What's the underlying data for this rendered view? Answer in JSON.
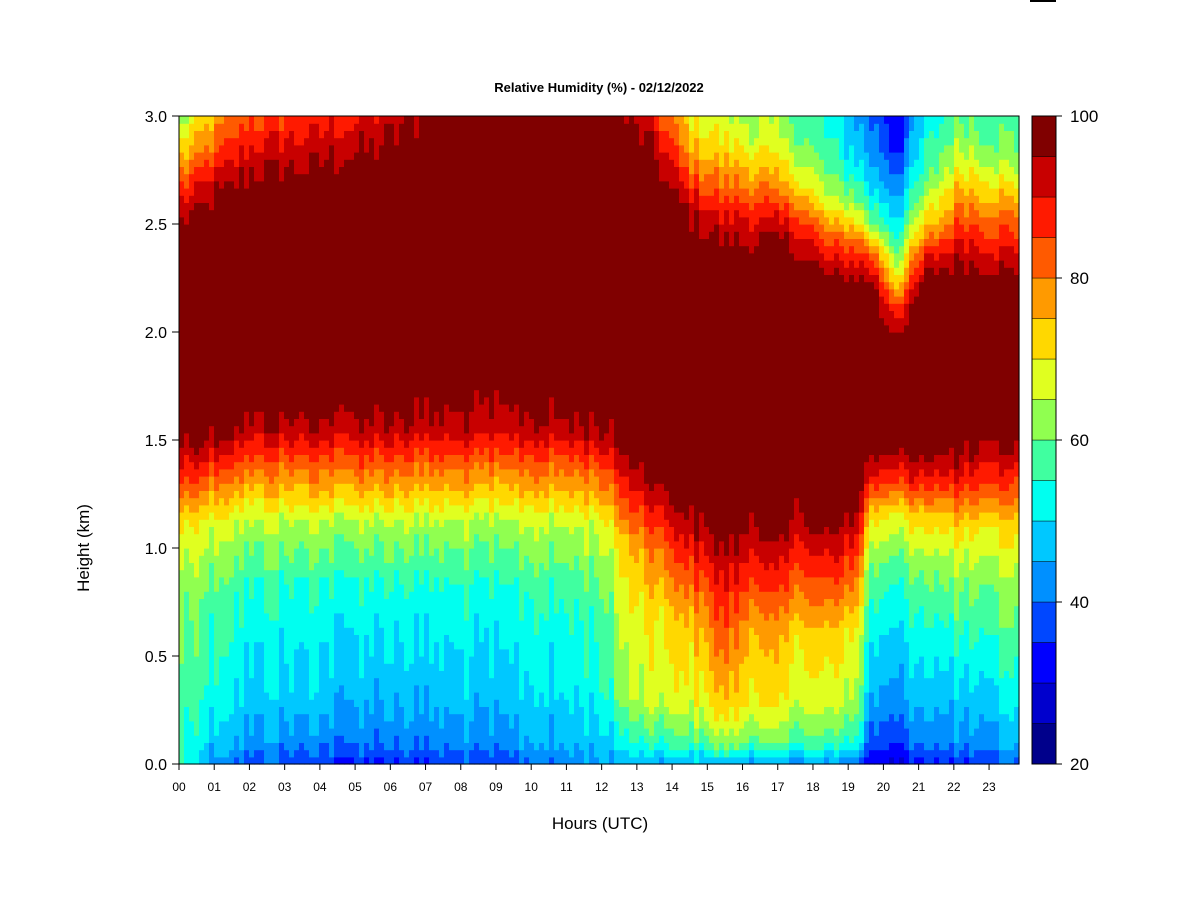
{
  "chart_data": {
    "type": "heatmap",
    "title": "Relative Humidity (%) - 02/12/2022",
    "xlabel": "Hours (UTC)",
    "ylabel": "Height (km)",
    "x_ticks": [
      "00",
      "01",
      "02",
      "03",
      "04",
      "05",
      "06",
      "07",
      "08",
      "09",
      "10",
      "11",
      "12",
      "13",
      "14",
      "15",
      "16",
      "17",
      "18",
      "19",
      "20",
      "21",
      "22",
      "23"
    ],
    "x_range": [
      0,
      23.85
    ],
    "y_ticks": [
      "0.0",
      "0.5",
      "1.0",
      "1.5",
      "2.0",
      "2.5",
      "3.0"
    ],
    "ylim": [
      0,
      3
    ],
    "colorbar": {
      "ticks": [
        "20",
        "40",
        "60",
        "80",
        "100"
      ],
      "range": [
        20,
        100
      ],
      "levels": [
        20,
        25,
        30,
        35,
        40,
        45,
        50,
        55,
        60,
        65,
        70,
        75,
        80,
        85,
        90,
        95,
        100
      ],
      "colors": [
        "#00008B",
        "#0000CD",
        "#0000FF",
        "#0047FF",
        "#0090FF",
        "#00C8FF",
        "#00FFF0",
        "#40FFA0",
        "#90FF50",
        "#E0FF20",
        "#FFD800",
        "#FF9A00",
        "#FF5A00",
        "#FF1A00",
        "#C80000",
        "#800000"
      ]
    },
    "profiles": [
      {
        "hour": 0.0,
        "rh": [
          [
            0.0,
            55
          ],
          [
            0.3,
            58
          ],
          [
            0.8,
            62
          ],
          [
            1.1,
            70
          ],
          [
            1.3,
            85
          ],
          [
            1.55,
            98
          ],
          [
            1.7,
            100
          ],
          [
            2.4,
            100
          ],
          [
            2.6,
            90
          ],
          [
            2.8,
            75
          ],
          [
            3.0,
            62
          ]
        ]
      },
      {
        "hour": 1.0,
        "rh": [
          [
            0.0,
            42
          ],
          [
            0.1,
            47
          ],
          [
            0.3,
            52
          ],
          [
            0.8,
            58
          ],
          [
            1.1,
            66
          ],
          [
            1.3,
            80
          ],
          [
            1.5,
            95
          ],
          [
            1.7,
            100
          ],
          [
            2.5,
            100
          ],
          [
            2.7,
            92
          ],
          [
            2.85,
            82
          ],
          [
            3.0,
            75
          ]
        ]
      },
      {
        "hour": 2.0,
        "rh": [
          [
            0.0,
            38
          ],
          [
            0.1,
            44
          ],
          [
            0.3,
            48
          ],
          [
            0.8,
            55
          ],
          [
            1.1,
            64
          ],
          [
            1.35,
            80
          ],
          [
            1.55,
            94
          ],
          [
            1.7,
            100
          ],
          [
            2.6,
            100
          ],
          [
            2.8,
            93
          ],
          [
            3.0,
            84
          ]
        ]
      },
      {
        "hour": 3.5,
        "rh": [
          [
            0.0,
            36
          ],
          [
            0.1,
            42
          ],
          [
            0.3,
            48
          ],
          [
            0.8,
            54
          ],
          [
            1.1,
            64
          ],
          [
            1.35,
            80
          ],
          [
            1.55,
            93
          ],
          [
            1.7,
            100
          ],
          [
            2.6,
            100
          ],
          [
            2.8,
            94
          ],
          [
            3.0,
            86
          ]
        ]
      },
      {
        "hour": 5.5,
        "rh": [
          [
            0.0,
            34
          ],
          [
            0.1,
            40
          ],
          [
            0.3,
            45
          ],
          [
            0.8,
            53
          ],
          [
            1.1,
            63
          ],
          [
            1.35,
            80
          ],
          [
            1.55,
            93
          ],
          [
            1.75,
            100
          ],
          [
            2.7,
            100
          ],
          [
            2.85,
            95
          ],
          [
            3.0,
            90
          ]
        ]
      },
      {
        "hour": 7.5,
        "rh": [
          [
            0.0,
            36
          ],
          [
            0.1,
            42
          ],
          [
            0.3,
            47
          ],
          [
            0.8,
            54
          ],
          [
            1.1,
            64
          ],
          [
            1.35,
            80
          ],
          [
            1.55,
            93
          ],
          [
            1.8,
            100
          ],
          [
            3.0,
            100
          ]
        ]
      },
      {
        "hour": 9.5,
        "rh": [
          [
            0.0,
            38
          ],
          [
            0.1,
            44
          ],
          [
            0.3,
            48
          ],
          [
            0.8,
            55
          ],
          [
            1.1,
            64
          ],
          [
            1.35,
            80
          ],
          [
            1.55,
            93
          ],
          [
            1.8,
            100
          ],
          [
            3.0,
            100
          ]
        ]
      },
      {
        "hour": 11.0,
        "rh": [
          [
            0.0,
            42
          ],
          [
            0.1,
            46
          ],
          [
            0.3,
            50
          ],
          [
            0.8,
            56
          ],
          [
            1.1,
            65
          ],
          [
            1.35,
            80
          ],
          [
            1.55,
            94
          ],
          [
            1.8,
            100
          ],
          [
            3.0,
            100
          ]
        ]
      },
      {
        "hour": 12.0,
        "rh": [
          [
            0.0,
            44
          ],
          [
            0.1,
            47
          ],
          [
            0.3,
            52
          ],
          [
            0.8,
            58
          ],
          [
            1.1,
            66
          ],
          [
            1.35,
            82
          ],
          [
            1.55,
            95
          ],
          [
            1.8,
            100
          ],
          [
            3.0,
            100
          ]
        ]
      },
      {
        "hour": 12.6,
        "rh": [
          [
            0.0,
            46
          ],
          [
            0.1,
            52
          ],
          [
            0.3,
            62
          ],
          [
            0.7,
            67
          ],
          [
            1.0,
            72
          ],
          [
            1.25,
            85
          ],
          [
            1.45,
            96
          ],
          [
            1.6,
            100
          ],
          [
            2.9,
            100
          ],
          [
            3.0,
            95
          ]
        ]
      },
      {
        "hour": 13.5,
        "rh": [
          [
            0.0,
            44
          ],
          [
            0.1,
            55
          ],
          [
            0.3,
            66
          ],
          [
            0.7,
            70
          ],
          [
            1.0,
            80
          ],
          [
            1.2,
            90
          ],
          [
            1.35,
            98
          ],
          [
            1.5,
            100
          ],
          [
            2.7,
            100
          ],
          [
            2.85,
            94
          ],
          [
            3.0,
            88
          ]
        ]
      },
      {
        "hour": 14.6,
        "rh": [
          [
            0.0,
            46
          ],
          [
            0.1,
            58
          ],
          [
            0.3,
            68
          ],
          [
            0.6,
            73
          ],
          [
            0.9,
            85
          ],
          [
            1.1,
            95
          ],
          [
            1.3,
            100
          ],
          [
            2.4,
            100
          ],
          [
            2.6,
            92
          ],
          [
            2.8,
            78
          ],
          [
            3.0,
            68
          ]
        ]
      },
      {
        "hour": 15.4,
        "rh": [
          [
            0.0,
            45
          ],
          [
            0.1,
            62
          ],
          [
            0.25,
            72
          ],
          [
            0.5,
            80
          ],
          [
            0.8,
            88
          ],
          [
            1.0,
            95
          ],
          [
            1.2,
            100
          ],
          [
            2.3,
            100
          ],
          [
            2.5,
            92
          ],
          [
            2.7,
            80
          ],
          [
            2.9,
            70
          ],
          [
            3.0,
            66
          ]
        ]
      },
      {
        "hour": 16.5,
        "rh": [
          [
            0.0,
            45
          ],
          [
            0.1,
            60
          ],
          [
            0.3,
            70
          ],
          [
            0.6,
            75
          ],
          [
            0.9,
            88
          ],
          [
            1.1,
            96
          ],
          [
            1.3,
            100
          ],
          [
            2.3,
            100
          ],
          [
            2.5,
            92
          ],
          [
            2.7,
            78
          ],
          [
            2.9,
            66
          ],
          [
            3.0,
            64
          ]
        ]
      },
      {
        "hour": 17.5,
        "rh": [
          [
            0.0,
            43
          ],
          [
            0.1,
            58
          ],
          [
            0.3,
            68
          ],
          [
            0.6,
            73
          ],
          [
            0.9,
            86
          ],
          [
            1.1,
            95
          ],
          [
            1.3,
            100
          ],
          [
            2.3,
            100
          ],
          [
            2.5,
            90
          ],
          [
            2.7,
            72
          ],
          [
            2.9,
            62
          ],
          [
            3.0,
            60
          ]
        ]
      },
      {
        "hour": 18.5,
        "rh": [
          [
            0.0,
            42
          ],
          [
            0.1,
            56
          ],
          [
            0.3,
            66
          ],
          [
            0.6,
            72
          ],
          [
            0.9,
            86
          ],
          [
            1.1,
            95
          ],
          [
            1.3,
            100
          ],
          [
            2.2,
            100
          ],
          [
            2.4,
            85
          ],
          [
            2.6,
            66
          ],
          [
            2.8,
            56
          ],
          [
            3.0,
            52
          ]
        ]
      },
      {
        "hour": 19.25,
        "rh": [
          [
            0.0,
            40
          ],
          [
            0.1,
            55
          ],
          [
            0.3,
            65
          ],
          [
            0.6,
            70
          ],
          [
            0.9,
            84
          ],
          [
            1.1,
            94
          ],
          [
            1.25,
            100
          ],
          [
            2.2,
            100
          ],
          [
            2.4,
            84
          ],
          [
            2.6,
            62
          ],
          [
            2.8,
            50
          ],
          [
            3.0,
            45
          ]
        ]
      },
      {
        "hour": 19.6,
        "rh": [
          [
            0.0,
            30
          ],
          [
            0.1,
            38
          ],
          [
            0.3,
            45
          ],
          [
            0.6,
            52
          ],
          [
            0.9,
            60
          ],
          [
            1.15,
            72
          ],
          [
            1.3,
            88
          ],
          [
            1.45,
            98
          ],
          [
            1.6,
            100
          ],
          [
            2.2,
            100
          ],
          [
            2.35,
            85
          ],
          [
            2.5,
            62
          ],
          [
            2.7,
            48
          ],
          [
            3.0,
            40
          ]
        ]
      },
      {
        "hour": 20.4,
        "rh": [
          [
            0.0,
            30
          ],
          [
            0.1,
            37
          ],
          [
            0.3,
            44
          ],
          [
            0.6,
            50
          ],
          [
            0.9,
            58
          ],
          [
            1.15,
            70
          ],
          [
            1.3,
            86
          ],
          [
            1.45,
            97
          ],
          [
            1.6,
            100
          ],
          [
            1.95,
            100
          ],
          [
            2.1,
            88
          ],
          [
            2.3,
            66
          ],
          [
            2.5,
            52
          ],
          [
            2.7,
            42
          ],
          [
            2.85,
            34
          ],
          [
            3.0,
            32
          ]
        ]
      },
      {
        "hour": 21.2,
        "rh": [
          [
            0.0,
            33
          ],
          [
            0.1,
            40
          ],
          [
            0.3,
            46
          ],
          [
            0.6,
            52
          ],
          [
            0.9,
            60
          ],
          [
            1.15,
            72
          ],
          [
            1.3,
            86
          ],
          [
            1.45,
            97
          ],
          [
            1.6,
            100
          ],
          [
            2.2,
            100
          ],
          [
            2.35,
            88
          ],
          [
            2.5,
            72
          ],
          [
            2.7,
            58
          ],
          [
            3.0,
            50
          ]
        ]
      },
      {
        "hour": 22.2,
        "rh": [
          [
            0.0,
            36
          ],
          [
            0.1,
            43
          ],
          [
            0.3,
            48
          ],
          [
            0.6,
            56
          ],
          [
            0.9,
            64
          ],
          [
            1.15,
            76
          ],
          [
            1.3,
            88
          ],
          [
            1.45,
            97
          ],
          [
            1.6,
            100
          ],
          [
            2.25,
            100
          ],
          [
            2.4,
            92
          ],
          [
            2.6,
            80
          ],
          [
            2.8,
            68
          ],
          [
            3.0,
            60
          ]
        ]
      },
      {
        "hour": 23.0,
        "rh": [
          [
            0.0,
            38
          ],
          [
            0.1,
            44
          ],
          [
            0.3,
            50
          ],
          [
            0.6,
            57
          ],
          [
            0.9,
            64
          ],
          [
            1.1,
            72
          ],
          [
            1.25,
            84
          ],
          [
            1.4,
            93
          ],
          [
            1.55,
            100
          ],
          [
            2.2,
            100
          ],
          [
            2.4,
            90
          ],
          [
            2.6,
            78
          ],
          [
            2.8,
            64
          ],
          [
            3.0,
            58
          ]
        ]
      },
      {
        "hour": 23.85,
        "rh": [
          [
            0.0,
            40
          ],
          [
            0.1,
            46
          ],
          [
            0.3,
            52
          ],
          [
            0.6,
            58
          ],
          [
            0.9,
            65
          ],
          [
            1.1,
            72
          ],
          [
            1.3,
            84
          ],
          [
            1.45,
            94
          ],
          [
            1.6,
            100
          ],
          [
            2.2,
            100
          ],
          [
            2.4,
            88
          ],
          [
            2.6,
            76
          ],
          [
            2.8,
            62
          ],
          [
            3.0,
            56
          ]
        ]
      }
    ]
  }
}
